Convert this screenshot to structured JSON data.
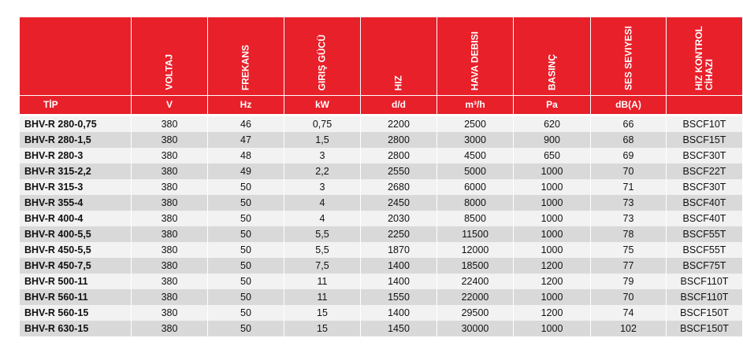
{
  "table": {
    "columns": [
      {
        "label": "TİP"
      },
      {
        "label": "VOLTAJ",
        "unit": "V"
      },
      {
        "label": "FREKANS",
        "unit": "Hz"
      },
      {
        "label": "GIRIŞ GÜCÜ",
        "unit": "kW"
      },
      {
        "label": "HIZ",
        "unit": "d/d"
      },
      {
        "label": "HAVA DEBISI",
        "unit": "m³/h"
      },
      {
        "label": "BASINÇ",
        "unit": "Pa"
      },
      {
        "label": "SES SEVIYESI",
        "unit": "dB(A)"
      },
      {
        "label": "HIZ KONTROL CİHAZI"
      }
    ],
    "rows": [
      [
        "BHV-R 280-0,75",
        "380",
        "46",
        "0,75",
        "2200",
        "2500",
        "620",
        "66",
        "BSCF10T"
      ],
      [
        "BHV-R 280-1,5",
        "380",
        "47",
        "1,5",
        "2800",
        "3000",
        "900",
        "68",
        "BSCF15T"
      ],
      [
        "BHV-R 280-3",
        "380",
        "48",
        "3",
        "2800",
        "4500",
        "650",
        "69",
        "BSCF30T"
      ],
      [
        "BHV-R 315-2,2",
        "380",
        "49",
        "2,2",
        "2550",
        "5000",
        "1000",
        "70",
        "BSCF22T"
      ],
      [
        "BHV-R 315-3",
        "380",
        "50",
        "3",
        "2680",
        "6000",
        "1000",
        "71",
        "BSCF30T"
      ],
      [
        "BHV-R 355-4",
        "380",
        "50",
        "4",
        "2450",
        "8000",
        "1000",
        "73",
        "BSCF40T"
      ],
      [
        "BHV-R 400-4",
        "380",
        "50",
        "4",
        "2030",
        "8500",
        "1000",
        "73",
        "BSCF40T"
      ],
      [
        "BHV-R 400-5,5",
        "380",
        "50",
        "5,5",
        "2250",
        "11500",
        "1000",
        "78",
        "BSCF55T"
      ],
      [
        "BHV-R 450-5,5",
        "380",
        "50",
        "5,5",
        "1870",
        "12000",
        "1000",
        "75",
        "BSCF55T"
      ],
      [
        "BHV-R 450-7,5",
        "380",
        "50",
        "7,5",
        "1400",
        "18500",
        "1200",
        "77",
        "BSCF75T"
      ],
      [
        "BHV-R 500-11",
        "380",
        "50",
        "11",
        "1400",
        "22400",
        "1200",
        "79",
        "BSCF110T"
      ],
      [
        "BHV-R 560-11",
        "380",
        "50",
        "11",
        "1550",
        "22000",
        "1000",
        "70",
        "BSCF110T"
      ],
      [
        "BHV-R 560-15",
        "380",
        "50",
        "15",
        "1400",
        "29500",
        "1200",
        "74",
        "BSCF150T"
      ],
      [
        "BHV-R 630-15",
        "380",
        "50",
        "15",
        "1450",
        "30000",
        "1000",
        "102",
        "BSCF150T"
      ]
    ]
  }
}
